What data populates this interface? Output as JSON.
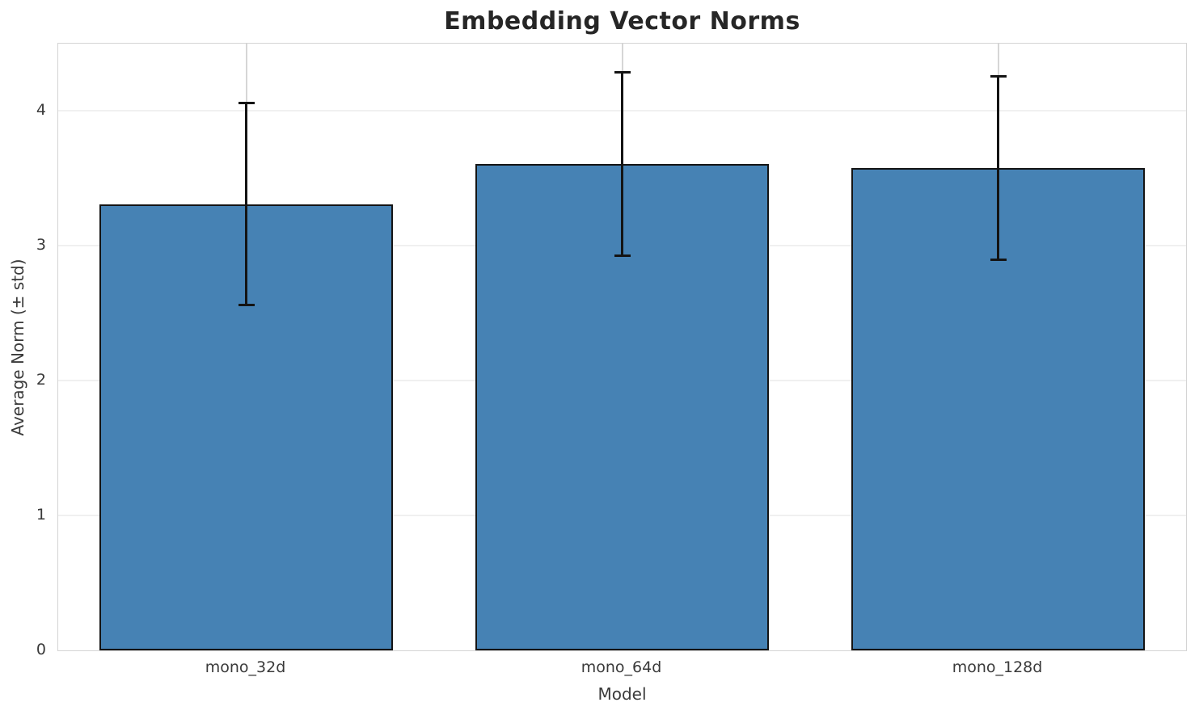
{
  "chart_data": {
    "type": "bar",
    "title": "Embedding Vector Norms",
    "xlabel": "Model",
    "ylabel": "Average Norm (± std)",
    "categories": [
      "mono_32d",
      "mono_64d",
      "mono_128d"
    ],
    "series": [
      {
        "name": "Average Norm",
        "values": [
          3.31,
          3.61,
          3.58
        ],
        "errors": [
          0.75,
          0.68,
          0.68
        ]
      }
    ],
    "error_bounds": [
      {
        "low": 2.56,
        "high": 4.06
      },
      {
        "low": 2.93,
        "high": 4.29
      },
      {
        "low": 2.9,
        "high": 4.26
      }
    ],
    "yticks": [
      0,
      1,
      2,
      3,
      4
    ],
    "ylim": [
      0,
      4.5
    ],
    "grid": "both",
    "legend": "none",
    "colors": {
      "bar_fill": "#4682b4",
      "bar_edge": "#141414",
      "error_bar": "#141414",
      "h_gridline": "#f0f0f0",
      "v_gridline": "#d6d6d6",
      "spine": "#d4d4d4",
      "title_text": "#262626",
      "tick_text": "#3a3a3a",
      "background": "#ffffff"
    }
  }
}
